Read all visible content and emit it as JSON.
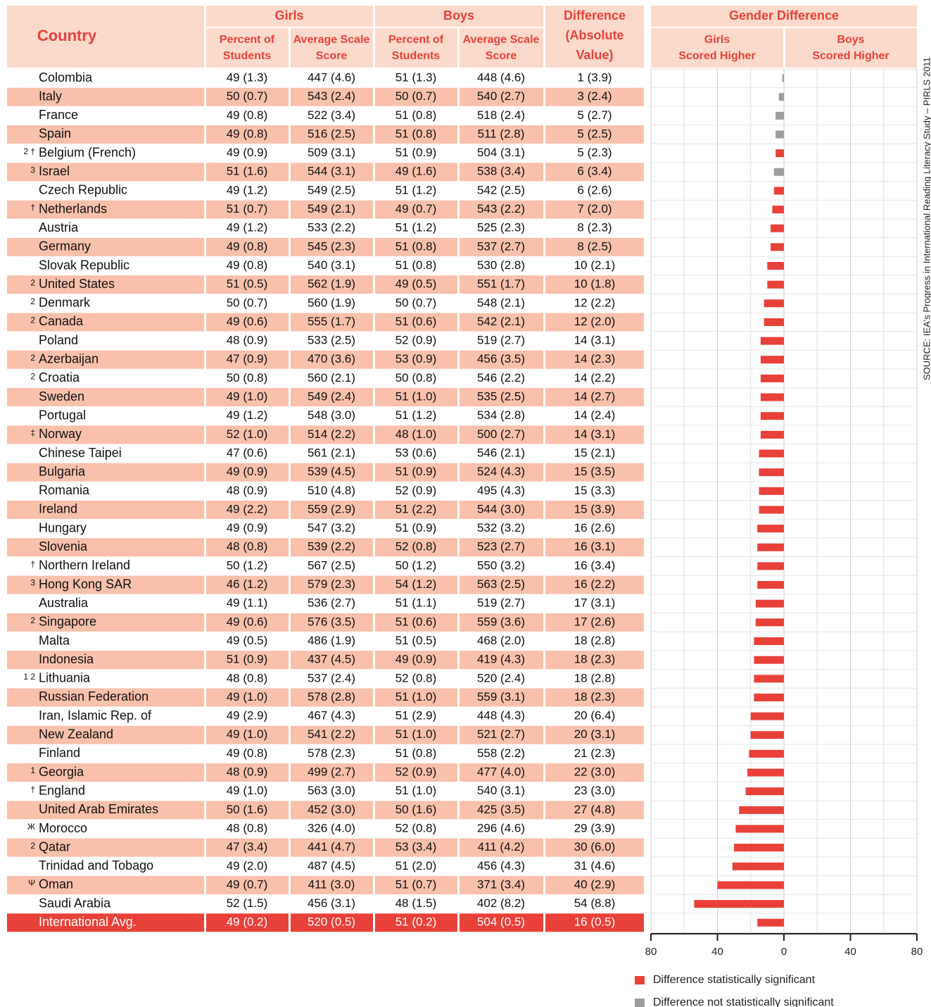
{
  "header": {
    "country": "Country",
    "girls": "Girls",
    "boys": "Boys",
    "difference": [
      "Difference",
      "(Absolute",
      "Value)"
    ],
    "percent": [
      "Percent of",
      "Students"
    ],
    "score": [
      "Average Scale",
      "Score"
    ],
    "gender_difference": "Gender Difference",
    "girls_higher": [
      "Girls",
      "Scored Higher"
    ],
    "boys_higher": [
      "Boys",
      "Scored Higher"
    ]
  },
  "table": {
    "rows": [
      {
        "country": "Colombia",
        "cells": [
          "49 (1.3)",
          "447 (4.6)",
          "51 (1.3)",
          "448 (4.6)",
          "1 (3.9)"
        ]
      },
      {
        "country": "Italy",
        "cells": [
          "50 (0.7)",
          "543 (2.4)",
          "50 (0.7)",
          "540 (2.7)",
          "3 (2.4)"
        ]
      },
      {
        "country": "France",
        "cells": [
          "49 (0.8)",
          "522 (3.4)",
          "51 (0.8)",
          "518 (2.4)",
          "5 (2.7)"
        ]
      },
      {
        "country": "Spain",
        "cells": [
          "49 (0.8)",
          "516 (2.5)",
          "51 (0.8)",
          "511 (2.8)",
          "5 (2.5)"
        ]
      },
      {
        "note": "2 †",
        "country": "Belgium (French)",
        "cells": [
          "49 (0.9)",
          "509 (3.1)",
          "51 (0.9)",
          "504 (3.1)",
          "5 (2.3)"
        ]
      },
      {
        "note": "3",
        "country": "Israel",
        "cells": [
          "51 (1.6)",
          "544 (3.1)",
          "49 (1.6)",
          "538 (3.4)",
          "6 (3.4)"
        ]
      },
      {
        "country": "Czech Republic",
        "cells": [
          "49 (1.2)",
          "549 (2.5)",
          "51 (1.2)",
          "542 (2.5)",
          "6 (2.6)"
        ]
      },
      {
        "note": "†",
        "country": "Netherlands",
        "cells": [
          "51 (0.7)",
          "549 (2.1)",
          "49 (0.7)",
          "543 (2.2)",
          "7 (2.0)"
        ]
      },
      {
        "country": "Austria",
        "cells": [
          "49 (1.2)",
          "533 (2.2)",
          "51 (1.2)",
          "525 (2.3)",
          "8 (2.3)"
        ]
      },
      {
        "country": "Germany",
        "cells": [
          "49 (0.8)",
          "545 (2.3)",
          "51 (0.8)",
          "537 (2.7)",
          "8 (2.5)"
        ]
      },
      {
        "country": "Slovak Republic",
        "cells": [
          "49 (0.8)",
          "540 (3.1)",
          "51 (0.8)",
          "530 (2.8)",
          "10 (2.1)"
        ]
      },
      {
        "note": "2",
        "country": "United States",
        "cells": [
          "51 (0.5)",
          "562 (1.9)",
          "49 (0.5)",
          "551 (1.7)",
          "10 (1.8)"
        ]
      },
      {
        "note": "2",
        "country": "Denmark",
        "cells": [
          "50 (0.7)",
          "560 (1.9)",
          "50 (0.7)",
          "548 (2.1)",
          "12 (2.2)"
        ]
      },
      {
        "note": "2",
        "country": "Canada",
        "cells": [
          "49 (0.6)",
          "555 (1.7)",
          "51 (0.6)",
          "542 (2.1)",
          "12 (2.0)"
        ]
      },
      {
        "country": "Poland",
        "cells": [
          "48 (0.9)",
          "533 (2.5)",
          "52 (0.9)",
          "519 (2.7)",
          "14 (3.1)"
        ]
      },
      {
        "note": "2",
        "country": "Azerbaijan",
        "cells": [
          "47 (0.9)",
          "470 (3.6)",
          "53 (0.9)",
          "456 (3.5)",
          "14 (2.3)"
        ]
      },
      {
        "note": "2",
        "country": "Croatia",
        "cells": [
          "50 (0.8)",
          "560 (2.1)",
          "50 (0.8)",
          "546 (2.2)",
          "14 (2.2)"
        ]
      },
      {
        "country": "Sweden",
        "cells": [
          "49 (1.0)",
          "549 (2.4)",
          "51 (1.0)",
          "535 (2.5)",
          "14 (2.7)"
        ]
      },
      {
        "country": "Portugal",
        "cells": [
          "49 (1.2)",
          "548 (3.0)",
          "51 (1.2)",
          "534 (2.8)",
          "14 (2.4)"
        ]
      },
      {
        "note": "‡",
        "country": "Norway",
        "cells": [
          "52 (1.0)",
          "514 (2.2)",
          "48 (1.0)",
          "500 (2.7)",
          "14 (3.1)"
        ]
      },
      {
        "country": "Chinese Taipei",
        "cells": [
          "47 (0.6)",
          "561 (2.1)",
          "53 (0.6)",
          "546 (2.1)",
          "15 (2.1)"
        ]
      },
      {
        "country": "Bulgaria",
        "cells": [
          "49 (0.9)",
          "539 (4.5)",
          "51 (0.9)",
          "524 (4.3)",
          "15 (3.5)"
        ]
      },
      {
        "country": "Romania",
        "cells": [
          "48 (0.9)",
          "510 (4.8)",
          "52 (0.9)",
          "495 (4.3)",
          "15 (3.3)"
        ]
      },
      {
        "country": "Ireland",
        "cells": [
          "49 (2.2)",
          "559 (2.9)",
          "51 (2.2)",
          "544 (3.0)",
          "15 (3.9)"
        ]
      },
      {
        "country": "Hungary",
        "cells": [
          "49 (0.9)",
          "547 (3.2)",
          "51 (0.9)",
          "532 (3.2)",
          "16 (2.6)"
        ]
      },
      {
        "country": "Slovenia",
        "cells": [
          "48 (0.8)",
          "539 (2.2)",
          "52 (0.8)",
          "523 (2.7)",
          "16 (3.1)"
        ]
      },
      {
        "note": "†",
        "country": "Northern Ireland",
        "cells": [
          "50 (1.2)",
          "567 (2.5)",
          "50 (1.2)",
          "550 (3.2)",
          "16 (3.4)"
        ]
      },
      {
        "note": "3",
        "country": "Hong Kong SAR",
        "cells": [
          "46 (1.2)",
          "579 (2.3)",
          "54 (1.2)",
          "563 (2.5)",
          "16 (2.2)"
        ]
      },
      {
        "country": "Australia",
        "cells": [
          "49 (1.1)",
          "536 (2.7)",
          "51 (1.1)",
          "519 (2.7)",
          "17 (3.1)"
        ]
      },
      {
        "note": "2",
        "country": "Singapore",
        "cells": [
          "49 (0.6)",
          "576 (3.5)",
          "51 (0.6)",
          "559 (3.6)",
          "17 (2.6)"
        ]
      },
      {
        "country": "Malta",
        "cells": [
          "49 (0.5)",
          "486 (1.9)",
          "51 (0.5)",
          "468 (2.0)",
          "18 (2.8)"
        ]
      },
      {
        "country": "Indonesia",
        "cells": [
          "51 (0.9)",
          "437 (4.5)",
          "49 (0.9)",
          "419 (4.3)",
          "18 (2.3)"
        ]
      },
      {
        "note": "1 2",
        "country": "Lithuania",
        "cells": [
          "48 (0.8)",
          "537 (2.4)",
          "52 (0.8)",
          "520 (2.4)",
          "18 (2.8)"
        ]
      },
      {
        "country": "Russian Federation",
        "cells": [
          "49 (1.0)",
          "578 (2.8)",
          "51 (1.0)",
          "559 (3.1)",
          "18 (2.3)"
        ]
      },
      {
        "country": "Iran, Islamic Rep. of",
        "cells": [
          "49 (2.9)",
          "467 (4.3)",
          "51 (2.9)",
          "448 (4.3)",
          "20 (6.4)"
        ]
      },
      {
        "country": "New Zealand",
        "cells": [
          "49 (1.0)",
          "541 (2.2)",
          "51 (1.0)",
          "521 (2.7)",
          "20 (3.1)"
        ]
      },
      {
        "country": "Finland",
        "cells": [
          "49 (0.8)",
          "578 (2.3)",
          "51 (0.8)",
          "558 (2.2)",
          "21 (2.3)"
        ]
      },
      {
        "note": "1",
        "country": "Georgia",
        "cells": [
          "48 (0.9)",
          "499 (2.7)",
          "52 (0.9)",
          "477 (4.0)",
          "22 (3.0)"
        ]
      },
      {
        "note": "†",
        "country": "England",
        "cells": [
          "49 (1.0)",
          "563 (3.0)",
          "51 (1.0)",
          "540 (3.1)",
          "23 (3.0)"
        ]
      },
      {
        "country": "United Arab Emirates",
        "cells": [
          "50 (1.6)",
          "452 (3.0)",
          "50 (1.6)",
          "425 (3.5)",
          "27 (4.8)"
        ]
      },
      {
        "note": "Ж",
        "country": "Morocco",
        "cells": [
          "48 (0.8)",
          "326 (4.0)",
          "52 (0.8)",
          "296 (4.6)",
          "29 (3.9)"
        ]
      },
      {
        "note": "2",
        "country": "Qatar",
        "cells": [
          "47 (3.4)",
          "441 (4.7)",
          "53 (3.4)",
          "411 (4.2)",
          "30 (6.0)"
        ]
      },
      {
        "country": "Trinidad and Tobago",
        "cells": [
          "49 (2.0)",
          "487 (4.5)",
          "51 (2.0)",
          "456 (4.3)",
          "31 (4.6)"
        ]
      },
      {
        "note": "Ψ",
        "country": "Oman",
        "cells": [
          "49 (0.7)",
          "411 (3.0)",
          "51 (0.7)",
          "371 (3.4)",
          "40 (2.9)"
        ]
      },
      {
        "country": "Saudi Arabia",
        "cells": [
          "52 (1.5)",
          "456 (3.1)",
          "48 (1.5)",
          "402 (8.2)",
          "54 (8.8)"
        ]
      },
      {
        "country": "International Avg.",
        "cells": [
          "49 (0.2)",
          "520 (0.5)",
          "51 (0.2)",
          "504 (0.5)",
          "16 (0.5)"
        ]
      }
    ]
  },
  "chart_data": {
    "type": "bar",
    "values": [
      -1,
      -3,
      -5,
      -5,
      -5,
      -6,
      -6,
      -7,
      -8,
      -8,
      -10,
      -10,
      -12,
      -12,
      -14,
      -14,
      -14,
      -14,
      -14,
      -14,
      -15,
      -15,
      -15,
      -15,
      -16,
      -16,
      -16,
      -16,
      -17,
      -17,
      -18,
      -18,
      -18,
      -18,
      -20,
      -20,
      -21,
      -22,
      -23,
      -27,
      -29,
      -30,
      -31,
      -40,
      -54,
      -16
    ],
    "significant": [
      false,
      false,
      false,
      false,
      true,
      false,
      true,
      true,
      true,
      true,
      true,
      true,
      true,
      true,
      true,
      true,
      true,
      true,
      true,
      true,
      true,
      true,
      true,
      true,
      true,
      true,
      true,
      true,
      true,
      true,
      true,
      true,
      true,
      true,
      true,
      true,
      true,
      true,
      true,
      true,
      true,
      true,
      true,
      true,
      true,
      true
    ],
    "xlim": [
      -80,
      80
    ],
    "xticks": [
      {
        "value": -80,
        "label": "80"
      },
      {
        "value": -40,
        "label": "40"
      },
      0,
      40,
      80
    ],
    "minor_grid": [
      -60,
      -20,
      20,
      60
    ],
    "grid": true,
    "legend": [
      {
        "name": "Difference statistically significant",
        "color": "#e8413a"
      },
      {
        "name": "Difference not statistically significant",
        "color": "#9d9d9d"
      }
    ],
    "source": "SOURCE: IEA's Progress in International Reading Literacy Study – PIRLS 2011"
  }
}
